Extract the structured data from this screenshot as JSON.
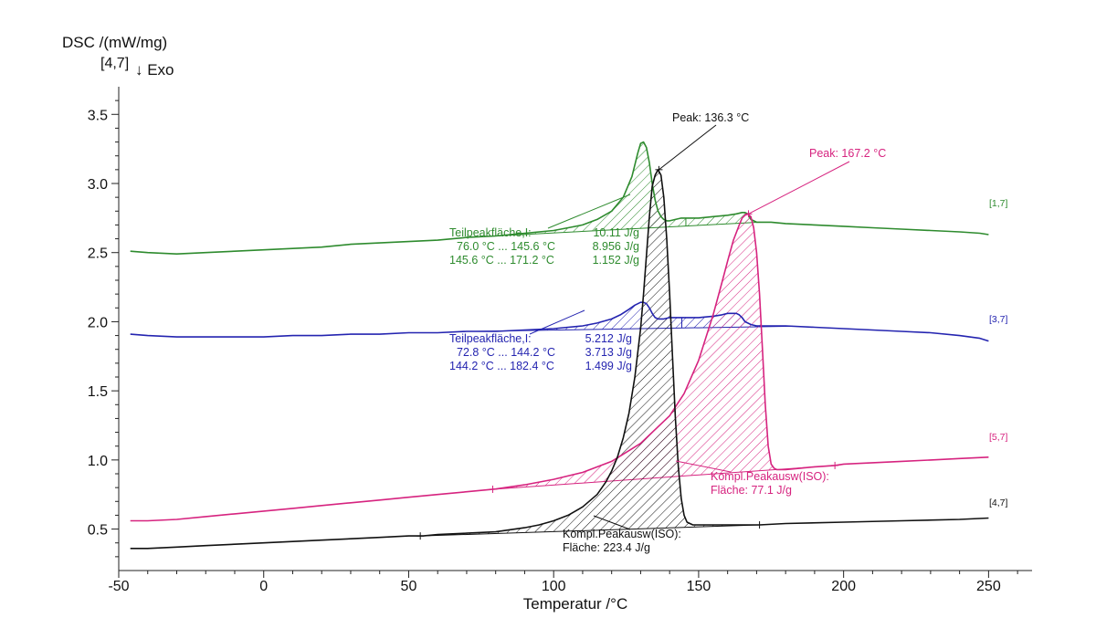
{
  "chart_data": {
    "type": "line",
    "ylabel": "DSC /(mW/mg)",
    "ylabel_curve": "[4,7]",
    "exo_label": "↓ Exo",
    "xlabel": "Temperatur /°C",
    "xlim": [
      -50,
      265
    ],
    "ylim": [
      0.2,
      3.7
    ],
    "xticks": [
      "-50",
      "0",
      "50",
      "100",
      "150",
      "200",
      "250"
    ],
    "yticks": [
      "0.5",
      "1.0",
      "1.5",
      "2.0",
      "2.5",
      "3.0",
      "3.5"
    ],
    "grid": false,
    "series": [
      {
        "name": "[1,7]",
        "color": "#2e8b2e",
        "x": [
          -46,
          -40,
          -30,
          -20,
          -10,
          0,
          10,
          20,
          30,
          40,
          50,
          60,
          70,
          80,
          90,
          100,
          105,
          110,
          115,
          120,
          124,
          127,
          129,
          130,
          131,
          132,
          133,
          134,
          135,
          136,
          137,
          138,
          139,
          140,
          142,
          144,
          146,
          150,
          155,
          160,
          163,
          165,
          166,
          167,
          167.5,
          168,
          169,
          170,
          172,
          175,
          180,
          190,
          200,
          210,
          220,
          230,
          240,
          247,
          250
        ],
        "y": [
          2.51,
          2.5,
          2.49,
          2.5,
          2.51,
          2.52,
          2.53,
          2.54,
          2.56,
          2.57,
          2.58,
          2.59,
          2.61,
          2.62,
          2.64,
          2.66,
          2.68,
          2.7,
          2.74,
          2.8,
          2.9,
          3.05,
          3.22,
          3.29,
          3.3,
          3.26,
          3.15,
          3.0,
          2.88,
          2.8,
          2.76,
          2.74,
          2.73,
          2.73,
          2.74,
          2.75,
          2.75,
          2.75,
          2.76,
          2.77,
          2.78,
          2.79,
          2.79,
          2.78,
          2.76,
          2.74,
          2.73,
          2.72,
          2.72,
          2.72,
          2.71,
          2.7,
          2.69,
          2.68,
          2.67,
          2.66,
          2.65,
          2.64,
          2.63
        ]
      },
      {
        "name": "[3,7]",
        "color": "#2424b0",
        "x": [
          -46,
          -40,
          -30,
          -20,
          -10,
          0,
          10,
          20,
          30,
          40,
          50,
          60,
          70,
          80,
          90,
          100,
          110,
          115,
          120,
          123,
          126,
          128,
          130,
          131,
          132,
          133,
          134,
          135,
          136,
          138,
          140,
          145,
          150,
          155,
          158,
          160,
          162,
          163,
          164,
          165,
          166,
          168,
          170,
          175,
          180,
          190,
          200,
          210,
          220,
          230,
          240,
          247,
          250
        ],
        "y": [
          1.91,
          1.9,
          1.89,
          1.89,
          1.89,
          1.89,
          1.9,
          1.9,
          1.91,
          1.91,
          1.92,
          1.92,
          1.93,
          1.93,
          1.94,
          1.95,
          1.97,
          1.99,
          2.02,
          2.05,
          2.09,
          2.12,
          2.14,
          2.14,
          2.13,
          2.1,
          2.06,
          2.03,
          2.02,
          2.02,
          2.03,
          2.03,
          2.03,
          2.04,
          2.05,
          2.06,
          2.06,
          2.06,
          2.05,
          2.03,
          2.0,
          1.98,
          1.97,
          1.97,
          1.97,
          1.96,
          1.95,
          1.94,
          1.93,
          1.92,
          1.9,
          1.88,
          1.86
        ]
      },
      {
        "name": "[5,7]",
        "color": "#d6237f",
        "x": [
          -46,
          -40,
          -30,
          -20,
          -10,
          0,
          10,
          20,
          30,
          40,
          50,
          60,
          70,
          80,
          90,
          100,
          110,
          120,
          130,
          140,
          145,
          150,
          155,
          158,
          160,
          162,
          164,
          165,
          166,
          167,
          168,
          169,
          170,
          171,
          172,
          173,
          174,
          175,
          176,
          177,
          178,
          180,
          185,
          190,
          197,
          200,
          210,
          220,
          230,
          240,
          250
        ],
        "y": [
          0.56,
          0.56,
          0.57,
          0.59,
          0.61,
          0.63,
          0.65,
          0.67,
          0.69,
          0.71,
          0.73,
          0.75,
          0.77,
          0.79,
          0.82,
          0.86,
          0.91,
          0.99,
          1.12,
          1.32,
          1.48,
          1.72,
          2.05,
          2.28,
          2.44,
          2.59,
          2.7,
          2.75,
          2.77,
          2.78,
          2.76,
          2.68,
          2.5,
          2.2,
          1.8,
          1.4,
          1.1,
          0.97,
          0.94,
          0.93,
          0.93,
          0.93,
          0.94,
          0.95,
          0.96,
          0.97,
          0.98,
          0.99,
          1.0,
          1.01,
          1.02
        ]
      },
      {
        "name": "[4,7]",
        "color": "#111111",
        "x": [
          -46,
          -40,
          -30,
          -20,
          -10,
          0,
          10,
          20,
          30,
          40,
          50,
          55,
          60,
          70,
          80,
          90,
          95,
          100,
          105,
          110,
          115,
          118,
          120,
          122,
          124,
          126,
          128,
          130,
          131,
          132,
          133,
          134,
          135,
          136,
          137,
          138,
          139,
          140,
          141,
          142,
          143,
          144,
          145,
          146,
          148,
          150,
          160,
          170,
          171,
          180,
          200,
          220,
          240,
          250
        ],
        "y": [
          0.36,
          0.36,
          0.37,
          0.38,
          0.39,
          0.4,
          0.41,
          0.42,
          0.43,
          0.44,
          0.45,
          0.45,
          0.46,
          0.47,
          0.48,
          0.51,
          0.53,
          0.56,
          0.6,
          0.66,
          0.75,
          0.84,
          0.92,
          1.02,
          1.16,
          1.34,
          1.6,
          1.95,
          2.2,
          2.48,
          2.76,
          2.98,
          3.06,
          3.1,
          3.06,
          2.9,
          2.6,
          2.2,
          1.75,
          1.3,
          0.95,
          0.72,
          0.6,
          0.55,
          0.53,
          0.53,
          0.53,
          0.53,
          0.53,
          0.54,
          0.55,
          0.56,
          0.57,
          0.58
        ]
      }
    ],
    "annotations": {
      "peak_black": {
        "text": "Peak: 136.3 °C",
        "color": "#111111",
        "x": 136.3,
        "y": 3.1
      },
      "peak_magenta": {
        "text": "Peak: 167.2 °C",
        "color": "#d6237f",
        "x": 167.2,
        "y": 2.78
      },
      "green_block": {
        "color": "#2e8b2e",
        "lines": [
          {
            "label": "Teilpeakfläche,I:",
            "value": "10.11 J/g"
          },
          {
            "label": "76.0 °C ... 145.6 °C",
            "value": "8.956 J/g"
          },
          {
            "label": "145.6 °C ... 171.2 °C",
            "value": "1.152 J/g"
          }
        ]
      },
      "blue_block": {
        "color": "#2424b0",
        "lines": [
          {
            "label": "Teilpeakfläche,I:",
            "value": "5.212 J/g"
          },
          {
            "label": "72.8 °C ... 144.2 °C",
            "value": "3.713 J/g"
          },
          {
            "label": "144.2 °C ... 182.4 °C",
            "value": "1.499 J/g"
          }
        ]
      },
      "magenta_block": {
        "color": "#d6237f",
        "line1": "Kompl.Peakausw(ISO):",
        "line2": "Fläche:  77.1 J/g"
      },
      "black_block": {
        "color": "#111111",
        "line1": "Kompl.Peakausw(ISO):",
        "line2": "Fläche:  223.4 J/g"
      }
    },
    "integration": {
      "green": {
        "x1": 76.0,
        "x2": 171.2,
        "split": 145.6
      },
      "blue": {
        "x1": 72.8,
        "x2": 182.4,
        "split": 144.2
      },
      "magenta": {
        "x1": 79.0,
        "x2": 197.0
      },
      "black": {
        "x1": 54.0,
        "x2": 171.0
      }
    }
  }
}
